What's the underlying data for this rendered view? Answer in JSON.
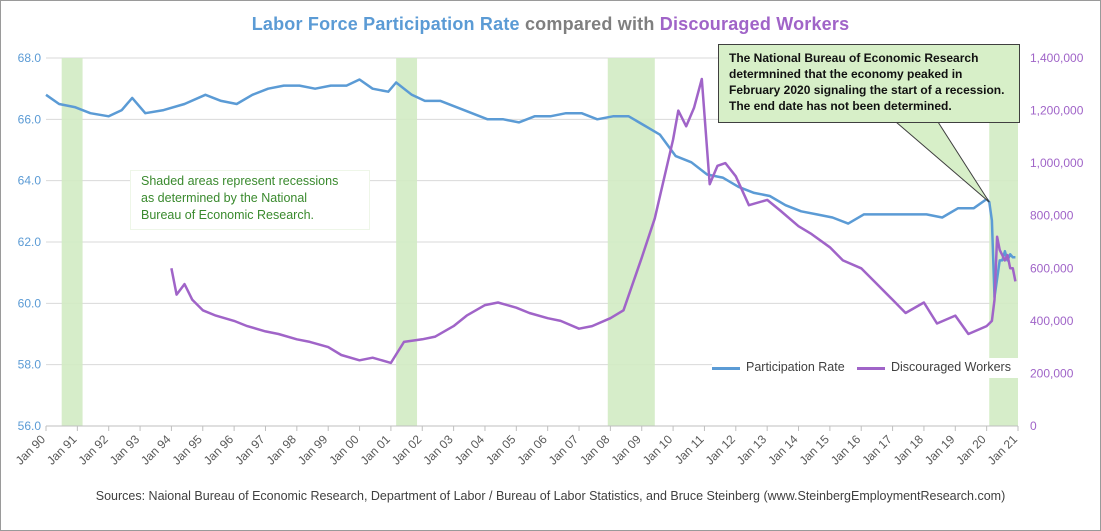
{
  "title": {
    "part1": "Labor Force Participation  Rate",
    "part2": "compared  with",
    "part3": "Discouraged  Workers"
  },
  "source": "Sources: Naional Bureau of Economic Research, Department of Labor / Bureau of Labor Statistics, and Bruce Steinberg (www.SteinbergEmploymentResearch.com)",
  "annotations": {
    "shaded_note": [
      "Shaded areas represent recessions",
      "as determined by the National",
      "Bureau of Economic Research."
    ],
    "nber_note": [
      "The National Bureau of Economic  Research",
      "determnined that the economy peaked in",
      "February 2020 signaling the start of a recession.",
      "The end date has not been determined."
    ]
  },
  "colors": {
    "participation": "#5b9bd5",
    "discouraged": "#a064c8",
    "recession": "#d2ebc3",
    "title_gray": "#7f7f7f",
    "grid": "#d9d9d9"
  },
  "chart_data": {
    "type": "line",
    "x_tick_labels": [
      "Jan 90",
      "Jan 91",
      "Jan 92",
      "Jan 93",
      "Jan 94",
      "Jan 95",
      "Jan 96",
      "Jan 97",
      "Jan 98",
      "Jan 99",
      "Jan 00",
      "Jan 01",
      "Jan 02",
      "Jan 03",
      "Jan 04",
      "Jan 05",
      "Jan 06",
      "Jan 07",
      "Jan 08",
      "Jan 09",
      "Jan 10",
      "Jan 11",
      "Jan 12",
      "Jan 13",
      "Jan 14",
      "Jan 15",
      "Jan 16",
      "Jan 17",
      "Jan 18",
      "Jan 19",
      "Jan 20",
      "Jan 21"
    ],
    "y_left": {
      "min": 56,
      "max": 68,
      "ticks": [
        "56.0",
        "58.0",
        "60.0",
        "62.0",
        "64.0",
        "66.0",
        "68.0"
      ]
    },
    "y_right": {
      "min": 0,
      "max": 1400000,
      "ticks": [
        "0",
        "200,000",
        "400,000",
        "600,000",
        "800,000",
        "1,000,000",
        "1,200,000",
        "1,400,000"
      ]
    },
    "recessions": [
      {
        "start": "1990-07",
        "end": "1991-03"
      },
      {
        "start": "2001-03",
        "end": "2001-11"
      },
      {
        "start": "2007-12",
        "end": "2009-06"
      },
      {
        "start": "2020-02",
        "end": "2021-01"
      }
    ],
    "series": [
      {
        "name": "Participation Rate",
        "axis": "left",
        "points": [
          [
            "1990-01",
            66.8
          ],
          [
            "1990-06",
            66.5
          ],
          [
            "1990-12",
            66.4
          ],
          [
            "1991-06",
            66.2
          ],
          [
            "1992-01",
            66.1
          ],
          [
            "1992-06",
            66.3
          ],
          [
            "1992-10",
            66.7
          ],
          [
            "1993-03",
            66.2
          ],
          [
            "1993-10",
            66.3
          ],
          [
            "1994-06",
            66.5
          ],
          [
            "1995-02",
            66.8
          ],
          [
            "1995-08",
            66.6
          ],
          [
            "1996-02",
            66.5
          ],
          [
            "1996-08",
            66.8
          ],
          [
            "1997-02",
            67.0
          ],
          [
            "1997-08",
            67.1
          ],
          [
            "1998-02",
            67.1
          ],
          [
            "1998-08",
            67.0
          ],
          [
            "1999-02",
            67.1
          ],
          [
            "1999-08",
            67.1
          ],
          [
            "2000-01",
            67.3
          ],
          [
            "2000-06",
            67.0
          ],
          [
            "2000-12",
            66.9
          ],
          [
            "2001-03",
            67.2
          ],
          [
            "2001-09",
            66.8
          ],
          [
            "2002-02",
            66.6
          ],
          [
            "2002-08",
            66.6
          ],
          [
            "2003-02",
            66.4
          ],
          [
            "2003-08",
            66.2
          ],
          [
            "2004-02",
            66.0
          ],
          [
            "2004-08",
            66.0
          ],
          [
            "2005-02",
            65.9
          ],
          [
            "2005-08",
            66.1
          ],
          [
            "2006-02",
            66.1
          ],
          [
            "2006-08",
            66.2
          ],
          [
            "2007-02",
            66.2
          ],
          [
            "2007-08",
            66.0
          ],
          [
            "2008-02",
            66.1
          ],
          [
            "2008-08",
            66.1
          ],
          [
            "2009-02",
            65.8
          ],
          [
            "2009-08",
            65.5
          ],
          [
            "2010-02",
            64.8
          ],
          [
            "2010-08",
            64.6
          ],
          [
            "2011-02",
            64.2
          ],
          [
            "2011-08",
            64.1
          ],
          [
            "2012-02",
            63.8
          ],
          [
            "2012-08",
            63.6
          ],
          [
            "2013-02",
            63.5
          ],
          [
            "2013-08",
            63.2
          ],
          [
            "2014-02",
            63.0
          ],
          [
            "2014-08",
            62.9
          ],
          [
            "2015-02",
            62.8
          ],
          [
            "2015-08",
            62.6
          ],
          [
            "2016-02",
            62.9
          ],
          [
            "2016-08",
            62.9
          ],
          [
            "2017-02",
            62.9
          ],
          [
            "2017-08",
            62.9
          ],
          [
            "2018-02",
            62.9
          ],
          [
            "2018-08",
            62.8
          ],
          [
            "2019-02",
            63.1
          ],
          [
            "2019-08",
            63.1
          ],
          [
            "2020-01",
            63.4
          ],
          [
            "2020-02",
            63.3
          ],
          [
            "2020-03",
            62.7
          ],
          [
            "2020-04",
            60.2
          ],
          [
            "2020-05",
            60.8
          ],
          [
            "2020-06",
            61.4
          ],
          [
            "2020-07",
            61.4
          ],
          [
            "2020-08",
            61.7
          ],
          [
            "2020-09",
            61.4
          ],
          [
            "2020-10",
            61.6
          ],
          [
            "2020-11",
            61.5
          ],
          [
            "2020-12",
            61.5
          ]
        ]
      },
      {
        "name": "Discouraged Workers",
        "axis": "right",
        "points": [
          [
            "1994-01",
            600000
          ],
          [
            "1994-03",
            500000
          ],
          [
            "1994-06",
            540000
          ],
          [
            "1994-09",
            480000
          ],
          [
            "1995-01",
            440000
          ],
          [
            "1995-06",
            420000
          ],
          [
            "1996-01",
            400000
          ],
          [
            "1996-06",
            380000
          ],
          [
            "1997-01",
            360000
          ],
          [
            "1997-06",
            350000
          ],
          [
            "1998-01",
            330000
          ],
          [
            "1998-06",
            320000
          ],
          [
            "1999-01",
            300000
          ],
          [
            "1999-06",
            270000
          ],
          [
            "2000-01",
            250000
          ],
          [
            "2000-06",
            260000
          ],
          [
            "2001-01",
            240000
          ],
          [
            "2001-06",
            320000
          ],
          [
            "2002-01",
            330000
          ],
          [
            "2002-06",
            340000
          ],
          [
            "2003-01",
            380000
          ],
          [
            "2003-06",
            420000
          ],
          [
            "2004-01",
            460000
          ],
          [
            "2004-06",
            470000
          ],
          [
            "2005-01",
            450000
          ],
          [
            "2005-06",
            430000
          ],
          [
            "2006-01",
            410000
          ],
          [
            "2006-06",
            400000
          ],
          [
            "2007-01",
            370000
          ],
          [
            "2007-06",
            380000
          ],
          [
            "2008-01",
            410000
          ],
          [
            "2008-06",
            440000
          ],
          [
            "2009-01",
            640000
          ],
          [
            "2009-06",
            790000
          ],
          [
            "2010-01",
            1090000
          ],
          [
            "2010-03",
            1200000
          ],
          [
            "2010-06",
            1140000
          ],
          [
            "2010-09",
            1210000
          ],
          [
            "2010-12",
            1320000
          ],
          [
            "2011-03",
            920000
          ],
          [
            "2011-06",
            990000
          ],
          [
            "2011-09",
            1000000
          ],
          [
            "2012-01",
            950000
          ],
          [
            "2012-06",
            840000
          ],
          [
            "2013-01",
            860000
          ],
          [
            "2013-06",
            820000
          ],
          [
            "2014-01",
            760000
          ],
          [
            "2014-06",
            730000
          ],
          [
            "2015-01",
            680000
          ],
          [
            "2015-06",
            630000
          ],
          [
            "2016-01",
            600000
          ],
          [
            "2016-06",
            550000
          ],
          [
            "2017-01",
            480000
          ],
          [
            "2017-06",
            430000
          ],
          [
            "2018-01",
            470000
          ],
          [
            "2018-06",
            390000
          ],
          [
            "2019-01",
            420000
          ],
          [
            "2019-06",
            350000
          ],
          [
            "2020-01",
            380000
          ],
          [
            "2020-02",
            390000
          ],
          [
            "2020-03",
            400000
          ],
          [
            "2020-04",
            480000
          ],
          [
            "2020-05",
            720000
          ],
          [
            "2020-06",
            670000
          ],
          [
            "2020-07",
            650000
          ],
          [
            "2020-08",
            630000
          ],
          [
            "2020-09",
            650000
          ],
          [
            "2020-10",
            600000
          ],
          [
            "2020-11",
            600000
          ],
          [
            "2020-12",
            550000
          ]
        ]
      }
    ]
  }
}
